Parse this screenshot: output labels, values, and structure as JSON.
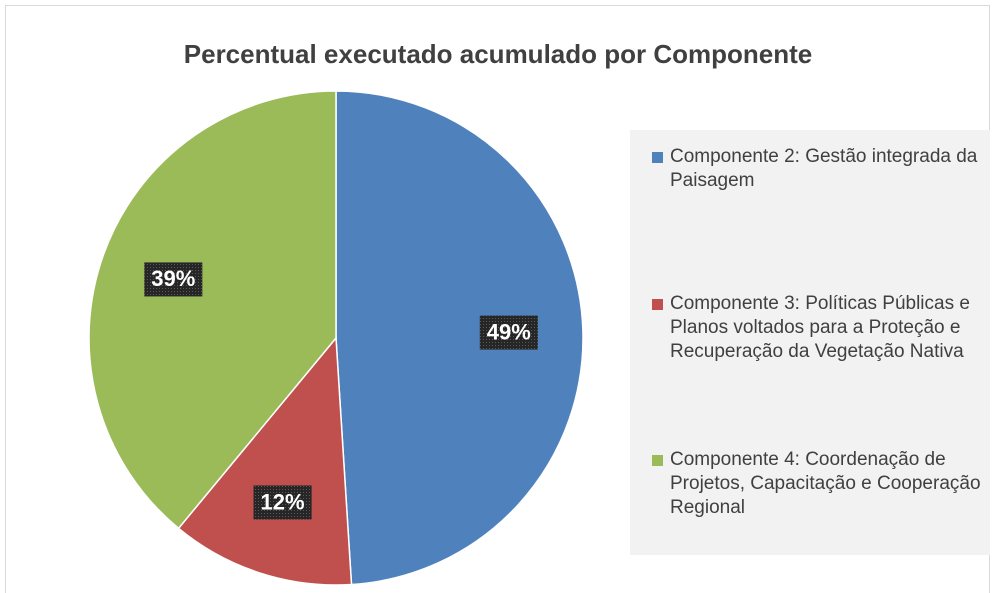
{
  "chart_data": {
    "type": "pie",
    "title": "Percentual executado acumulado por Componente",
    "categories": [
      "Componente 2: Gestão integrada da Paisagem",
      "Componente 3: Políticas Públicas e Planos voltados para a Proteção e Recuperação da Vegetação Nativa",
      "Componente 4: Coordenação de Projetos, Capacitação e Cooperação Regional"
    ],
    "values": [
      49,
      12,
      39
    ],
    "value_labels": [
      "49%",
      "12%",
      "39%"
    ],
    "colors": [
      "#4f81bd",
      "#c0504d",
      "#9bbb59"
    ],
    "legend": "right"
  }
}
